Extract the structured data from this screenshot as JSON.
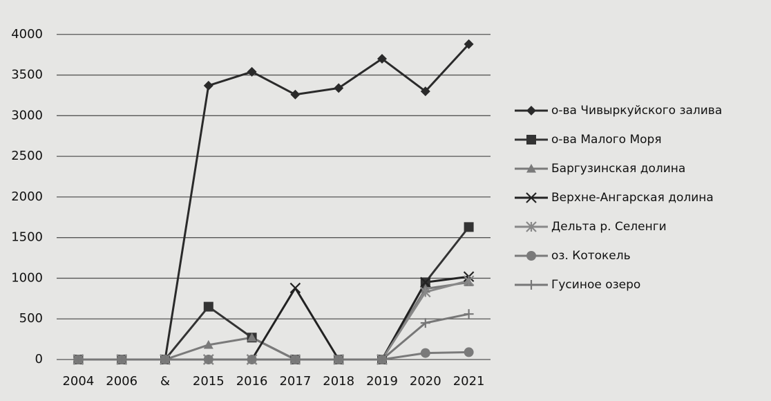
{
  "chart_data": {
    "type": "line",
    "categories": [
      "2004",
      "2006",
      "&",
      "2015",
      "2016",
      "2017",
      "2018",
      "2019",
      "2020",
      "2021"
    ],
    "series": [
      {
        "name": "о-ва Чивыркуйского залива",
        "color": "#2a2a2a",
        "marker": "diamond",
        "values": [
          0,
          0,
          0,
          3370,
          3540,
          3260,
          3340,
          3700,
          3300,
          3880
        ]
      },
      {
        "name": "о-ва Малого Моря",
        "color": "#333333",
        "marker": "square",
        "values": [
          0,
          0,
          0,
          650,
          270,
          0,
          0,
          0,
          950,
          1630
        ]
      },
      {
        "name": "Баргузинская долина",
        "color": "#7a7a7a",
        "marker": "triangle",
        "values": [
          0,
          0,
          0,
          180,
          270,
          0,
          0,
          0,
          870,
          950
        ]
      },
      {
        "name": "Верхне-Ангарская долина",
        "color": "#222222",
        "marker": "x",
        "values": [
          0,
          0,
          0,
          0,
          0,
          880,
          0,
          0,
          950,
          1020
        ]
      },
      {
        "name": "Дельта р. Селенги",
        "color": "#888888",
        "marker": "star",
        "values": [
          0,
          0,
          0,
          0,
          0,
          0,
          0,
          0,
          830,
          970
        ]
      },
      {
        "name": "оз. Котокель",
        "color": "#7a7a7a",
        "marker": "circle",
        "values": [
          0,
          0,
          0,
          0,
          0,
          0,
          0,
          0,
          80,
          90
        ]
      },
      {
        "name": "Гусиное озеро",
        "color": "#777777",
        "marker": "plus",
        "values": [
          0,
          0,
          0,
          0,
          0,
          0,
          0,
          0,
          450,
          560
        ]
      }
    ],
    "ylim": [
      0,
      4500
    ],
    "yticks": [
      0,
      500,
      1000,
      1500,
      2000,
      2500,
      3000,
      3500,
      4000
    ],
    "grid": true,
    "legend": "right"
  }
}
